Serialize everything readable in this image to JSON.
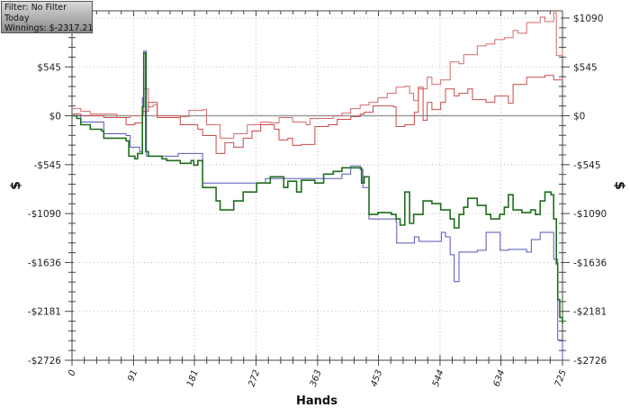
{
  "info_box": {
    "filter": "Filter: No Filter",
    "period": "Today",
    "winnings": "Winnings: $-2317.21"
  },
  "chart_data": {
    "type": "line",
    "title": "",
    "xlabel": "Hands",
    "ylabel": "$",
    "ylabel_right": "$",
    "xlim": [
      0,
      725
    ],
    "ylim": [
      -2726,
      1090
    ],
    "x_ticks": [
      0,
      91,
      181,
      272,
      363,
      453,
      544,
      634,
      725
    ],
    "y_ticks": [
      1090,
      545,
      0,
      -545,
      -1090,
      -1636,
      -2181,
      -2726
    ],
    "y_tick_labels": [
      "$1090",
      "$545",
      "$0",
      "-$545",
      "-$1090",
      "-$1636",
      "-$2181",
      "-$2726"
    ],
    "grid": true,
    "series": [
      {
        "color": "#d46a6a",
        "points": [
          [
            0,
            80
          ],
          [
            13,
            50
          ],
          [
            27,
            20
          ],
          [
            47,
            20
          ],
          [
            66,
            -20
          ],
          [
            86,
            0
          ],
          [
            106,
            300
          ],
          [
            113,
            100
          ],
          [
            120,
            120
          ],
          [
            126,
            0
          ],
          [
            160,
            -10
          ],
          [
            173,
            60
          ],
          [
            193,
            70
          ],
          [
            199,
            -100
          ],
          [
            219,
            -250
          ],
          [
            239,
            -200
          ],
          [
            259,
            -100
          ],
          [
            279,
            -70
          ],
          [
            293,
            -80
          ],
          [
            306,
            -20
          ],
          [
            326,
            -70
          ],
          [
            346,
            -100
          ],
          [
            352,
            -30
          ],
          [
            386,
            0
          ],
          [
            399,
            30
          ],
          [
            412,
            80
          ],
          [
            426,
            120
          ],
          [
            439,
            150
          ],
          [
            452,
            200
          ],
          [
            466,
            250
          ],
          [
            479,
            320
          ],
          [
            492,
            330
          ],
          [
            499,
            250
          ],
          [
            505,
            170
          ],
          [
            512,
            300
          ],
          [
            525,
            430
          ],
          [
            532,
            350
          ],
          [
            545,
            400
          ],
          [
            559,
            600
          ],
          [
            572,
            580
          ],
          [
            579,
            680
          ],
          [
            599,
            780
          ],
          [
            612,
            800
          ],
          [
            625,
            850
          ],
          [
            639,
            870
          ],
          [
            652,
            950
          ],
          [
            659,
            920
          ],
          [
            672,
            1040
          ],
          [
            692,
            1100
          ],
          [
            699,
            1050
          ],
          [
            712,
            1150
          ],
          [
            716,
            670
          ],
          [
            725,
            750
          ]
        ]
      },
      {
        "color": "#c94a4a",
        "points": [
          [
            0,
            20
          ],
          [
            13,
            0
          ],
          [
            47,
            -20
          ],
          [
            80,
            -100
          ],
          [
            93,
            -80
          ],
          [
            104,
            50
          ],
          [
            113,
            150
          ],
          [
            126,
            -20
          ],
          [
            160,
            -100
          ],
          [
            186,
            -150
          ],
          [
            193,
            -220
          ],
          [
            213,
            -420
          ],
          [
            226,
            -300
          ],
          [
            239,
            -350
          ],
          [
            253,
            -250
          ],
          [
            266,
            -170
          ],
          [
            279,
            -100
          ],
          [
            299,
            -150
          ],
          [
            306,
            -270
          ],
          [
            319,
            -250
          ],
          [
            326,
            -330
          ],
          [
            339,
            -320
          ],
          [
            359,
            -120
          ],
          [
            379,
            -100
          ],
          [
            392,
            -40
          ],
          [
            412,
            -10
          ],
          [
            426,
            20
          ],
          [
            432,
            40
          ],
          [
            445,
            110
          ],
          [
            475,
            100
          ],
          [
            479,
            -120
          ],
          [
            492,
            -100
          ],
          [
            506,
            40
          ],
          [
            512,
            320
          ],
          [
            519,
            -50
          ],
          [
            525,
            150
          ],
          [
            532,
            70
          ],
          [
            545,
            150
          ],
          [
            552,
            300
          ],
          [
            565,
            220
          ],
          [
            572,
            250
          ],
          [
            585,
            300
          ],
          [
            592,
            180
          ],
          [
            612,
            150
          ],
          [
            625,
            220
          ],
          [
            645,
            140
          ],
          [
            652,
            350
          ],
          [
            672,
            430
          ],
          [
            699,
            450
          ],
          [
            712,
            400
          ],
          [
            725,
            420
          ]
        ]
      },
      {
        "color": "#5555bb",
        "points": [
          [
            0,
            0
          ],
          [
            13,
            -70
          ],
          [
            47,
            -200
          ],
          [
            80,
            -220
          ],
          [
            86,
            -350
          ],
          [
            100,
            -400
          ],
          [
            104,
            200
          ],
          [
            106,
            720
          ],
          [
            110,
            -450
          ],
          [
            133,
            -450
          ],
          [
            157,
            -420
          ],
          [
            193,
            -750
          ],
          [
            279,
            -750
          ],
          [
            286,
            -700
          ],
          [
            386,
            -700
          ],
          [
            399,
            -650
          ],
          [
            412,
            -560
          ],
          [
            426,
            -600
          ],
          [
            430,
            -800
          ],
          [
            439,
            -1150
          ],
          [
            479,
            -1180
          ],
          [
            480,
            -1420
          ],
          [
            506,
            -1350
          ],
          [
            513,
            -1400
          ],
          [
            546,
            -1300
          ],
          [
            552,
            -1350
          ],
          [
            559,
            -1550
          ],
          [
            565,
            -1850
          ],
          [
            572,
            -1520
          ],
          [
            599,
            -1500
          ],
          [
            612,
            -1300
          ],
          [
            632,
            -1300
          ],
          [
            633,
            -1500
          ],
          [
            645,
            -1490
          ],
          [
            672,
            -1520
          ],
          [
            679,
            -1380
          ],
          [
            692,
            -1300
          ],
          [
            708,
            -1300
          ],
          [
            712,
            -1600
          ],
          [
            718,
            -2500
          ],
          [
            725,
            -2726
          ]
        ]
      },
      {
        "color": "#1f6e1f",
        "points": [
          [
            0,
            0
          ],
          [
            7,
            -30
          ],
          [
            13,
            -100
          ],
          [
            27,
            -150
          ],
          [
            44,
            -170
          ],
          [
            47,
            -250
          ],
          [
            80,
            -280
          ],
          [
            84,
            -450
          ],
          [
            93,
            -480
          ],
          [
            97,
            -420
          ],
          [
            104,
            100
          ],
          [
            106,
            700
          ],
          [
            109,
            -400
          ],
          [
            113,
            -450
          ],
          [
            133,
            -480
          ],
          [
            140,
            -500
          ],
          [
            160,
            -530
          ],
          [
            176,
            -500
          ],
          [
            180,
            -550
          ],
          [
            186,
            -500
          ],
          [
            193,
            -800
          ],
          [
            213,
            -950
          ],
          [
            219,
            -1050
          ],
          [
            239,
            -950
          ],
          [
            253,
            -850
          ],
          [
            273,
            -750
          ],
          [
            293,
            -680
          ],
          [
            313,
            -800
          ],
          [
            319,
            -730
          ],
          [
            332,
            -850
          ],
          [
            339,
            -720
          ],
          [
            359,
            -750
          ],
          [
            372,
            -650
          ],
          [
            386,
            -620
          ],
          [
            399,
            -580
          ],
          [
            426,
            -580
          ],
          [
            428,
            -750
          ],
          [
            432,
            -680
          ],
          [
            439,
            -1100
          ],
          [
            452,
            -1080
          ],
          [
            472,
            -1100
          ],
          [
            479,
            -1150
          ],
          [
            485,
            -1220
          ],
          [
            492,
            -850
          ],
          [
            499,
            -1200
          ],
          [
            505,
            -1100
          ],
          [
            519,
            -950
          ],
          [
            532,
            -980
          ],
          [
            545,
            -1050
          ],
          [
            559,
            -1150
          ],
          [
            565,
            -1250
          ],
          [
            572,
            -1100
          ],
          [
            579,
            -1020
          ],
          [
            585,
            -920
          ],
          [
            599,
            -1000
          ],
          [
            612,
            -1100
          ],
          [
            619,
            -1150
          ],
          [
            632,
            -1100
          ],
          [
            639,
            -1020
          ],
          [
            645,
            -880
          ],
          [
            652,
            -1050
          ],
          [
            665,
            -1080
          ],
          [
            678,
            -1050
          ],
          [
            685,
            -1100
          ],
          [
            692,
            -950
          ],
          [
            699,
            -850
          ],
          [
            708,
            -880
          ],
          [
            712,
            -1150
          ],
          [
            716,
            -1650
          ],
          [
            718,
            -2050
          ],
          [
            721,
            -2250
          ],
          [
            725,
            -2317
          ]
        ]
      }
    ]
  }
}
